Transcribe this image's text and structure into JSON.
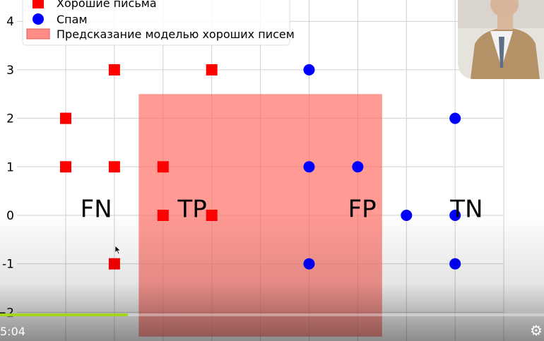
{
  "chart_data": {
    "type": "scatter",
    "xlim": [
      -0.2,
      8.9
    ],
    "ylim": [
      -2.0,
      4.4
    ],
    "grid": true,
    "yticks": [
      "4",
      "3",
      "2",
      "1",
      "0",
      "-1",
      "−2"
    ],
    "ytick_values": [
      4,
      3,
      2,
      1,
      0,
      -1,
      -2
    ],
    "series": [
      {
        "name": "Хорошие письма",
        "marker": "square",
        "color": "#ff0000",
        "points": [
          [
            1,
            3
          ],
          [
            3,
            3
          ],
          [
            0,
            2
          ],
          [
            0,
            1
          ],
          [
            1,
            1
          ],
          [
            2,
            1
          ],
          [
            2,
            0
          ],
          [
            3,
            0
          ],
          [
            1,
            -1
          ]
        ]
      },
      {
        "name": "Спам",
        "marker": "circle",
        "color": "#0000ff",
        "points": [
          [
            5,
            3
          ],
          [
            8,
            2
          ],
          [
            5,
            1
          ],
          [
            6,
            1
          ],
          [
            7,
            0
          ],
          [
            8,
            0
          ],
          [
            5,
            -1
          ],
          [
            8,
            -1
          ]
        ]
      }
    ],
    "region": {
      "name": "Предсказание моделью хороших писем",
      "x": [
        1.5,
        6.5
      ],
      "y": [
        -2.5,
        2.5
      ],
      "color": "#ff6f66"
    },
    "annotations": [
      {
        "text": "FN",
        "x": 0.3,
        "y": 0.15
      },
      {
        "text": "TP",
        "x": 2.3,
        "y": 0.15
      },
      {
        "text": "FP",
        "x": 5.8,
        "y": 0.15
      },
      {
        "text": "TN",
        "x": 7.9,
        "y": 0.15
      }
    ],
    "legend_position": "top-left"
  },
  "player": {
    "time": "5:04",
    "progress": 0.235,
    "progress_color": "#a6d41b",
    "settings_icon": "gear-icon"
  }
}
